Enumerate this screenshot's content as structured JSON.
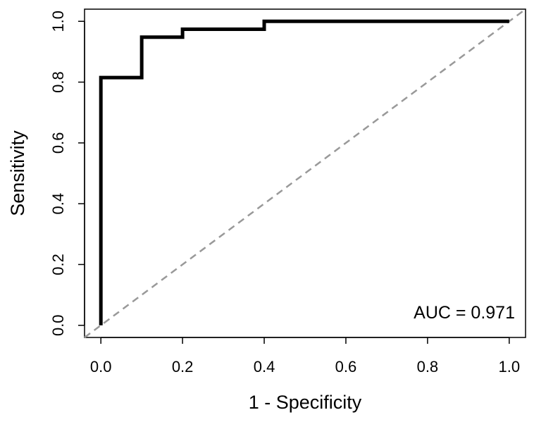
{
  "chart_data": {
    "type": "line",
    "title": "",
    "xlabel": "1 - Specificity",
    "ylabel": "Sensitivity",
    "xlim": [
      -0.04,
      1.04
    ],
    "ylim": [
      -0.04,
      1.04
    ],
    "xticks": [
      "0.0",
      "0.2",
      "0.4",
      "0.6",
      "0.8",
      "1.0"
    ],
    "yticks": [
      "0.0",
      "0.2",
      "0.4",
      "0.6",
      "0.8",
      "1.0"
    ],
    "grid": false,
    "series": [
      {
        "style": "solid-black-thick",
        "x": [
          0.0,
          0.0,
          0.1,
          0.1,
          0.2,
          0.2,
          0.4,
          0.4,
          1.0
        ],
        "y": [
          0.0,
          0.815,
          0.815,
          0.948,
          0.948,
          0.974,
          0.974,
          1.0,
          1.0
        ]
      },
      {
        "style": "dashed-gray",
        "x": [
          -0.04,
          1.04
        ],
        "y": [
          -0.04,
          1.04
        ]
      }
    ],
    "annotation": "AUC = 0.971"
  },
  "colors": {
    "roc_line": "#000000",
    "reference_line": "#999999",
    "frame": "#000000"
  }
}
